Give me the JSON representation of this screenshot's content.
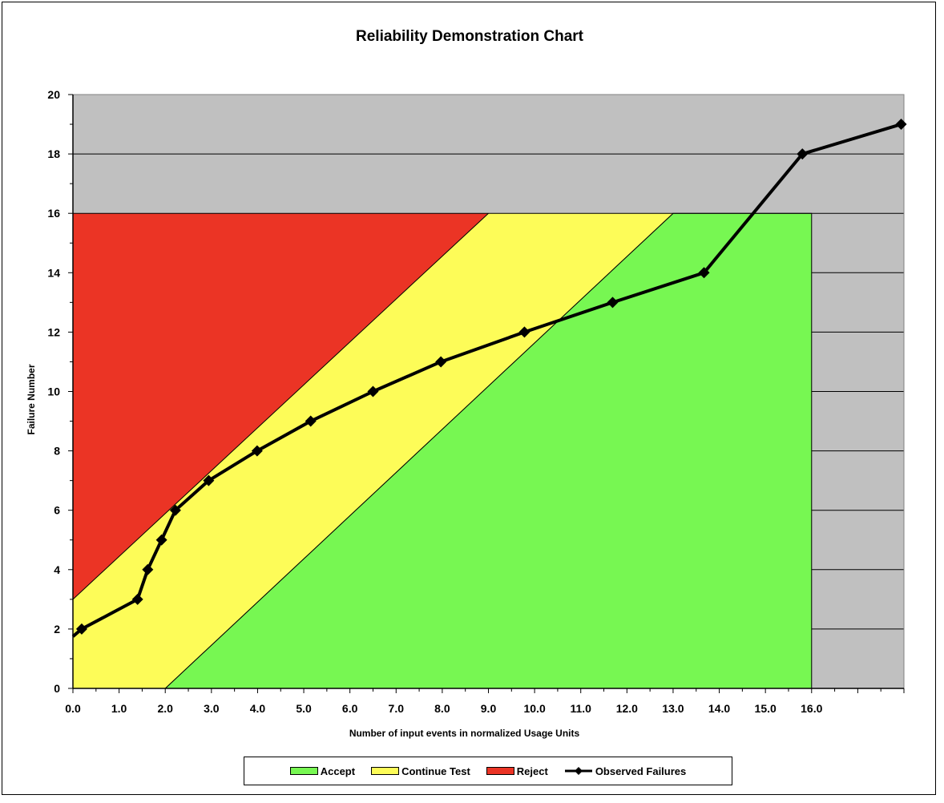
{
  "chart_data": {
    "type": "area",
    "title": "Reliability Demonstration Chart",
    "xlabel": "Number of input events in normalized Usage Units",
    "ylabel": "Failure Number",
    "xlim": [
      0,
      18
    ],
    "ylim": [
      0,
      20
    ],
    "x_ticks": [
      "0.0",
      "1.0",
      "2.0",
      "3.0",
      "4.0",
      "5.0",
      "6.0",
      "7.0",
      "8.0",
      "9.0",
      "10.0",
      "11.0",
      "12.0",
      "13.0",
      "14.0",
      "15.0",
      "16.0"
    ],
    "y_ticks": [
      "0",
      "2",
      "4",
      "6",
      "8",
      "10",
      "12",
      "14",
      "16",
      "18",
      "20"
    ],
    "grid": "horizontal",
    "legend_position": "bottom",
    "colors": {
      "accept": "#77f752",
      "continue": "#fdfc58",
      "reject": "#eb3425",
      "beyond": "#c0c0c0",
      "observed": "#000000"
    },
    "regions": {
      "reject_boundary": [
        [
          0,
          3
        ],
        [
          9,
          16
        ]
      ],
      "accept_boundary": [
        [
          2,
          0
        ],
        [
          13,
          16
        ]
      ],
      "decision_limit_failures": 16,
      "decision_limit_usage": 16
    },
    "series": [
      {
        "name": "Observed Failures",
        "points": [
          [
            0,
            1.75
          ],
          [
            0.19,
            2
          ],
          [
            1.4,
            3
          ],
          [
            1.62,
            4
          ],
          [
            1.92,
            5
          ],
          [
            2.22,
            6
          ],
          [
            2.94,
            7
          ],
          [
            3.99,
            8
          ],
          [
            5.15,
            9
          ],
          [
            6.5,
            10
          ],
          [
            7.97,
            11
          ],
          [
            9.78,
            12
          ],
          [
            11.69,
            13
          ],
          [
            13.67,
            14
          ],
          [
            15.8,
            18
          ],
          [
            17.94,
            19
          ]
        ]
      }
    ],
    "legend": [
      {
        "label": "Accept",
        "color": "#77f752"
      },
      {
        "label": "Continue Test",
        "color": "#fdfc58"
      },
      {
        "label": "Reject",
        "color": "#eb3425"
      },
      {
        "label": "Observed Failures",
        "color": "#000000"
      }
    ]
  }
}
